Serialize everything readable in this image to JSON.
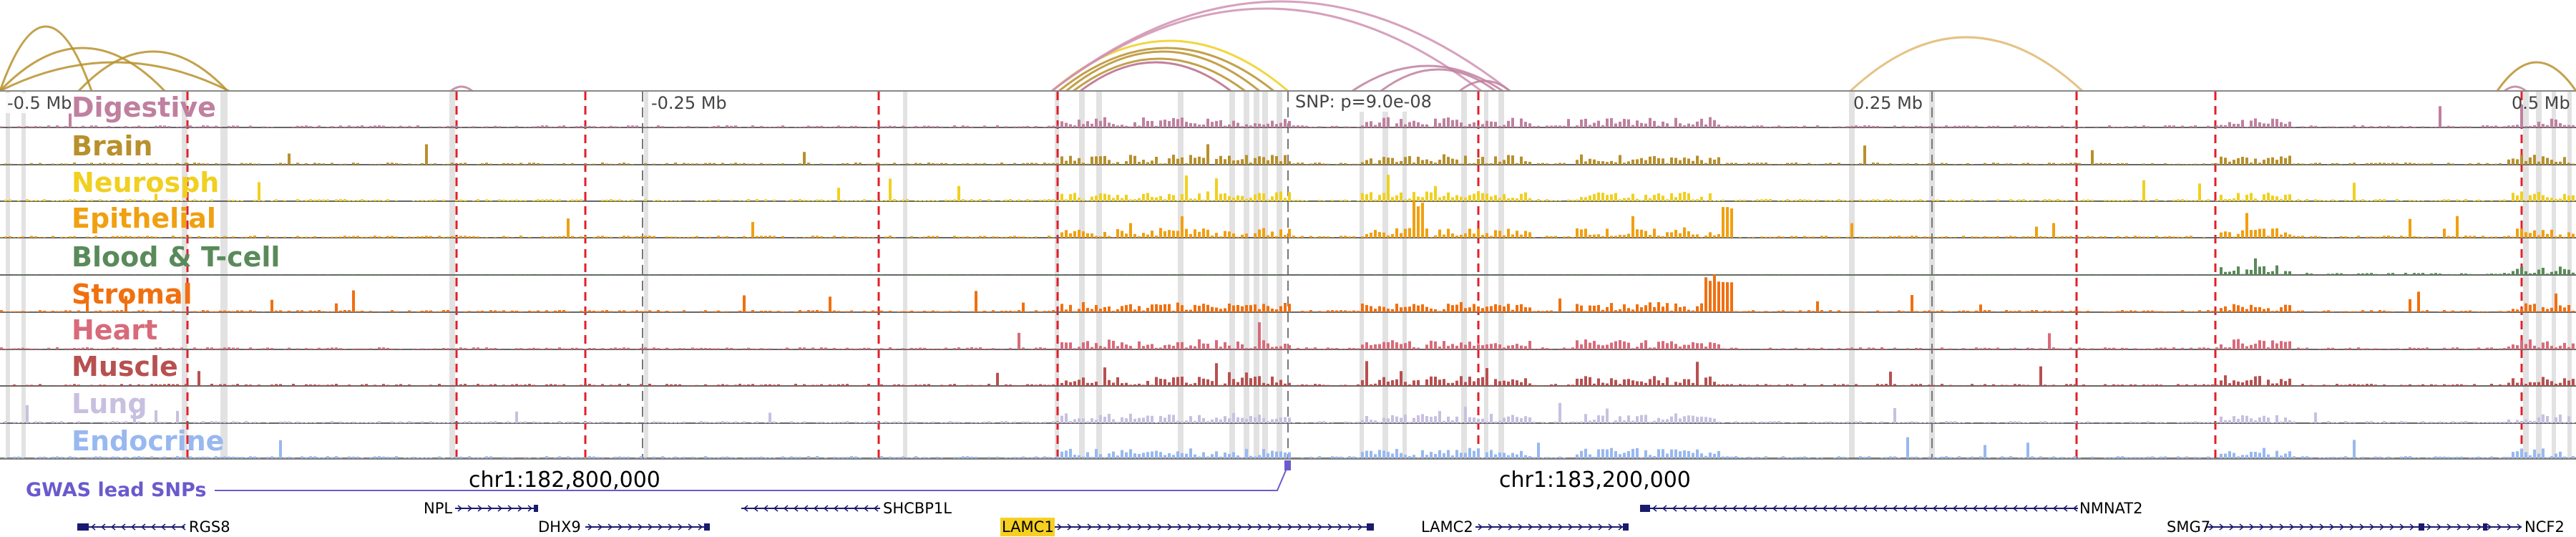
{
  "axis": {
    "labels": [
      "-0.5 Mb",
      "-0.25 Mb",
      "SNP: p=9.0e-08",
      "0.25 Mb",
      "0.5 Mb"
    ]
  },
  "tracks": [
    {
      "name": "Digestive",
      "color": "#c080a0"
    },
    {
      "name": "Brain",
      "color": "#b8902c"
    },
    {
      "name": "Neurosph",
      "color": "#f0d020"
    },
    {
      "name": "Epithelial",
      "color": "#f0a010"
    },
    {
      "name": "Blood & T-cell",
      "color": "#5a8a5a"
    },
    {
      "name": "Stromal",
      "color": "#f07010"
    },
    {
      "name": "Heart",
      "color": "#d86a7a"
    },
    {
      "name": "Muscle",
      "color": "#b85050"
    },
    {
      "name": "Lung",
      "color": "#c8c0e0"
    },
    {
      "name": "Endocrine",
      "color": "#98b8f0"
    }
  ],
  "coordinates": {
    "left": "chr1:182,800,000",
    "right": "chr1:183,200,000"
  },
  "gwas": {
    "label": "GWAS lead SNPs",
    "color": "#6a5acd"
  },
  "genes": [
    {
      "name": "RGS8",
      "highlight": false
    },
    {
      "name": "NPL",
      "highlight": false
    },
    {
      "name": "DHX9",
      "highlight": false
    },
    {
      "name": "SHCBP1L",
      "highlight": false
    },
    {
      "name": "LAMC1",
      "highlight": true
    },
    {
      "name": "LAMC2",
      "highlight": false
    },
    {
      "name": "NMNAT2",
      "highlight": false
    },
    {
      "name": "SMG7",
      "highlight": false
    },
    {
      "name": "NCF2",
      "highlight": false
    }
  ],
  "colors": {
    "red_marker": "#e0202a",
    "gray_band": "#d8d8d8",
    "gene_dark": "#1a1a6e",
    "highlight": "#f5d020"
  }
}
